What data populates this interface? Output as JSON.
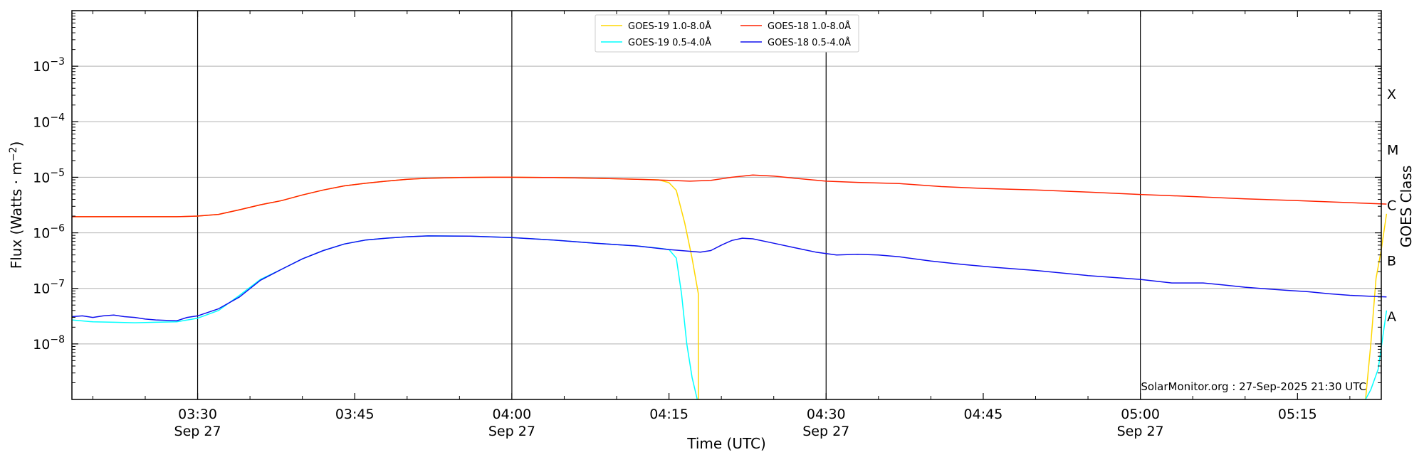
{
  "chart_data": {
    "type": "line",
    "title": "",
    "xlabel": "Time (UTC)",
    "ylabel": "Flux (Watts · m",
    "ylabel_sup": "−2",
    "ylabel_close": ")",
    "y2label": "GOES Class",
    "yscale": "log",
    "xlim": [
      "03:18",
      "05:23"
    ],
    "ylim": [
      1e-09,
      0.01
    ],
    "y_ticks": [
      {
        "value": 1e-08,
        "base": "10",
        "exp": "−8"
      },
      {
        "value": 1e-07,
        "base": "10",
        "exp": "−7"
      },
      {
        "value": 1e-06,
        "base": "10",
        "exp": "−6"
      },
      {
        "value": 1e-05,
        "base": "10",
        "exp": "−5"
      },
      {
        "value": 0.0001,
        "base": "10",
        "exp": "−4"
      },
      {
        "value": 0.001,
        "base": "10",
        "exp": "−3"
      }
    ],
    "x_ticks": [
      {
        "time": "03:30",
        "label": "03:30",
        "date": "Sep 27"
      },
      {
        "time": "03:45",
        "label": "03:45",
        "date": ""
      },
      {
        "time": "04:00",
        "label": "04:00",
        "date": "Sep 27"
      },
      {
        "time": "04:15",
        "label": "04:15",
        "date": ""
      },
      {
        "time": "04:30",
        "label": "04:30",
        "date": "Sep 27"
      },
      {
        "time": "04:45",
        "label": "04:45",
        "date": ""
      },
      {
        "time": "05:00",
        "label": "05:00",
        "date": "Sep 27"
      },
      {
        "time": "05:15",
        "label": "05:15",
        "date": ""
      }
    ],
    "vertical_lines": [
      "03:30",
      "04:00",
      "04:30",
      "05:00"
    ],
    "goes_classes": [
      {
        "label": "A",
        "value": 3.16e-08
      },
      {
        "label": "B",
        "value": 3.16e-07
      },
      {
        "label": "C",
        "value": 3.16e-06
      },
      {
        "label": "M",
        "value": 3.16e-05
      },
      {
        "label": "X",
        "value": 0.000316
      }
    ],
    "grid": "horizontal at major y ticks",
    "legend_position": "top-center",
    "credit": "SolarMonitor.org : 27-Sep-2025 21:30 UTC",
    "series": [
      {
        "name": "GOES-19 1.0-8.0Å",
        "color": "#ffd700",
        "points": [
          [
            "03:18",
            1.95e-06
          ],
          [
            "03:20",
            1.95e-06
          ],
          [
            "03:24",
            1.95e-06
          ],
          [
            "03:28",
            1.95e-06
          ],
          [
            "03:30",
            2e-06
          ],
          [
            "03:32",
            2.15e-06
          ],
          [
            "03:34",
            2.6e-06
          ],
          [
            "03:36",
            3.2e-06
          ],
          [
            "03:38",
            3.8e-06
          ],
          [
            "03:40",
            4.8e-06
          ],
          [
            "03:42",
            5.9e-06
          ],
          [
            "03:44",
            7e-06
          ],
          [
            "03:46",
            7.8e-06
          ],
          [
            "03:48",
            8.5e-06
          ],
          [
            "03:50",
            9.2e-06
          ],
          [
            "03:52",
            9.6e-06
          ],
          [
            "03:55",
            9.9e-06
          ],
          [
            "03:58",
            1e-05
          ],
          [
            "04:00",
            1e-05
          ],
          [
            "04:04",
            9.9e-06
          ],
          [
            "04:08",
            9.6e-06
          ],
          [
            "04:12",
            9.2e-06
          ],
          [
            "04:14",
            9e-06
          ],
          [
            "04:15",
            8e-06
          ],
          [
            "04:15.7",
            5.8e-06
          ],
          [
            "04:16.5",
            1.5e-06
          ],
          [
            "04:17.2",
            3.5e-07
          ],
          [
            "04:17.8",
            8e-08
          ],
          [
            "04:17.8",
            1e-09
          ]
        ],
        "segment2": [
          [
            "05:21.5",
            1e-09
          ],
          [
            "05:22",
            1e-08
          ],
          [
            "05:22.5",
            1.5e-07
          ],
          [
            "05:23",
            5e-07
          ],
          [
            "05:23.5",
            2.2e-06
          ]
        ]
      },
      {
        "name": "GOES-18 1.0-8.0Å",
        "color": "#ff2200",
        "points": [
          [
            "03:18",
            1.95e-06
          ],
          [
            "03:20",
            1.95e-06
          ],
          [
            "03:24",
            1.95e-06
          ],
          [
            "03:28",
            1.95e-06
          ],
          [
            "03:30",
            2e-06
          ],
          [
            "03:32",
            2.15e-06
          ],
          [
            "03:34",
            2.6e-06
          ],
          [
            "03:36",
            3.2e-06
          ],
          [
            "03:38",
            3.8e-06
          ],
          [
            "03:40",
            4.8e-06
          ],
          [
            "03:42",
            5.9e-06
          ],
          [
            "03:44",
            7e-06
          ],
          [
            "03:46",
            7.8e-06
          ],
          [
            "03:48",
            8.5e-06
          ],
          [
            "03:50",
            9.2e-06
          ],
          [
            "03:52",
            9.6e-06
          ],
          [
            "03:55",
            9.9e-06
          ],
          [
            "03:58",
            1e-05
          ],
          [
            "04:00",
            1e-05
          ],
          [
            "04:04",
            9.9e-06
          ],
          [
            "04:08",
            9.6e-06
          ],
          [
            "04:12",
            9.2e-06
          ],
          [
            "04:15",
            8.8e-06
          ],
          [
            "04:17",
            8.5e-06
          ],
          [
            "04:19",
            8.8e-06
          ],
          [
            "04:21",
            1e-05
          ],
          [
            "04:23",
            1.1e-05
          ],
          [
            "04:25",
            1.05e-05
          ],
          [
            "04:27",
            9.6e-06
          ],
          [
            "04:30",
            8.5e-06
          ],
          [
            "04:33",
            8.1e-06
          ],
          [
            "04:37",
            7.7e-06
          ],
          [
            "04:41",
            6.8e-06
          ],
          [
            "04:45",
            6.3e-06
          ],
          [
            "04:50",
            5.9e-06
          ],
          [
            "04:55",
            5.4e-06
          ],
          [
            "05:00",
            4.9e-06
          ],
          [
            "05:05",
            4.5e-06
          ],
          [
            "05:10",
            4.1e-06
          ],
          [
            "05:15",
            3.8e-06
          ],
          [
            "05:20",
            3.5e-06
          ],
          [
            "05:23.5",
            3.3e-06
          ]
        ]
      },
      {
        "name": "GOES-19 0.5-4.0Å",
        "color": "#00ffff",
        "points": [
          [
            "03:18",
            2.7e-08
          ],
          [
            "03:20",
            2.5e-08
          ],
          [
            "03:22",
            2.45e-08
          ],
          [
            "03:24",
            2.4e-08
          ],
          [
            "03:26",
            2.45e-08
          ],
          [
            "03:28",
            2.5e-08
          ],
          [
            "03:30",
            2.9e-08
          ],
          [
            "03:32",
            4e-08
          ],
          [
            "03:34",
            7.5e-08
          ],
          [
            "03:36",
            1.45e-07
          ],
          [
            "03:38",
            2.2e-07
          ],
          [
            "03:40",
            3.4e-07
          ],
          [
            "03:42",
            4.8e-07
          ],
          [
            "03:44",
            6.3e-07
          ],
          [
            "03:46",
            7.4e-07
          ],
          [
            "03:48",
            8e-07
          ],
          [
            "03:50",
            8.5e-07
          ],
          [
            "03:52",
            8.8e-07
          ],
          [
            "03:56",
            8.7e-07
          ],
          [
            "04:00",
            8.2e-07
          ],
          [
            "04:04",
            7.4e-07
          ],
          [
            "04:08",
            6.5e-07
          ],
          [
            "04:12",
            5.8e-07
          ],
          [
            "04:14",
            5.3e-07
          ],
          [
            "04:15",
            5e-07
          ],
          [
            "04:15.7",
            3.5e-07
          ],
          [
            "04:16.2",
            8e-08
          ],
          [
            "04:16.7",
            1e-08
          ],
          [
            "04:17.2",
            2.5e-09
          ],
          [
            "04:17.7",
            1e-09
          ]
        ],
        "segment2": [
          [
            "05:21.5",
            1e-09
          ],
          [
            "05:22",
            1.5e-09
          ],
          [
            "05:22.7",
            3.5e-09
          ],
          [
            "05:23.5",
            4e-08
          ]
        ]
      },
      {
        "name": "GOES-18 0.5-4.0Å",
        "color": "#1010ee",
        "points": [
          [
            "03:18",
            3.1e-08
          ],
          [
            "03:19",
            3.2e-08
          ],
          [
            "03:20",
            3e-08
          ],
          [
            "03:21",
            3.2e-08
          ],
          [
            "03:22",
            3.3e-08
          ],
          [
            "03:23",
            3.1e-08
          ],
          [
            "03:24",
            3e-08
          ],
          [
            "03:25",
            2.8e-08
          ],
          [
            "03:26",
            2.7e-08
          ],
          [
            "03:28",
            2.6e-08
          ],
          [
            "03:29",
            3e-08
          ],
          [
            "03:30",
            3.2e-08
          ],
          [
            "03:32",
            4.3e-08
          ],
          [
            "03:34",
            7e-08
          ],
          [
            "03:36",
            1.4e-07
          ],
          [
            "03:38",
            2.2e-07
          ],
          [
            "03:40",
            3.4e-07
          ],
          [
            "03:42",
            4.8e-07
          ],
          [
            "03:44",
            6.3e-07
          ],
          [
            "03:46",
            7.4e-07
          ],
          [
            "03:48",
            8e-07
          ],
          [
            "03:50",
            8.5e-07
          ],
          [
            "03:52",
            8.8e-07
          ],
          [
            "03:56",
            8.7e-07
          ],
          [
            "04:00",
            8.2e-07
          ],
          [
            "04:04",
            7.4e-07
          ],
          [
            "04:08",
            6.5e-07
          ],
          [
            "04:12",
            5.8e-07
          ],
          [
            "04:15",
            5e-07
          ],
          [
            "04:18",
            4.5e-07
          ],
          [
            "04:19",
            4.8e-07
          ],
          [
            "04:20",
            6e-07
          ],
          [
            "04:21",
            7.3e-07
          ],
          [
            "04:22",
            8e-07
          ],
          [
            "04:23",
            7.8e-07
          ],
          [
            "04:25",
            6.5e-07
          ],
          [
            "04:27",
            5.4e-07
          ],
          [
            "04:29",
            4.5e-07
          ],
          [
            "04:31",
            4e-07
          ],
          [
            "04:33",
            4.1e-07
          ],
          [
            "04:35",
            4e-07
          ],
          [
            "04:37",
            3.7e-07
          ],
          [
            "04:40",
            3.1e-07
          ],
          [
            "04:43",
            2.7e-07
          ],
          [
            "04:46",
            2.4e-07
          ],
          [
            "04:50",
            2.1e-07
          ],
          [
            "04:55",
            1.7e-07
          ],
          [
            "05:00",
            1.45e-07
          ],
          [
            "05:03",
            1.25e-07
          ],
          [
            "05:06",
            1.25e-07
          ],
          [
            "05:08",
            1.15e-07
          ],
          [
            "05:10",
            1.05e-07
          ],
          [
            "05:12",
            9.8e-08
          ],
          [
            "05:14",
            9.2e-08
          ],
          [
            "05:16",
            8.7e-08
          ],
          [
            "05:18",
            8e-08
          ],
          [
            "05:20",
            7.5e-08
          ],
          [
            "05:22",
            7.2e-08
          ],
          [
            "05:23.5",
            7e-08
          ]
        ]
      }
    ]
  }
}
